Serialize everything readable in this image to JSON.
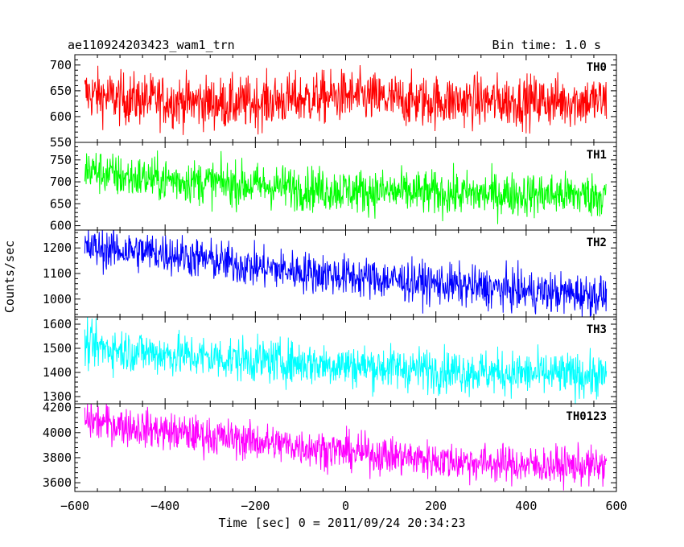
{
  "header": {
    "title": "ae110924203423_wam1_trn",
    "bin_time": "Bin time: 1.0 s"
  },
  "chart_data": {
    "type": "line",
    "title": "ae110924203423_wam1_trn",
    "subtitle": "Bin time: 1.0 s",
    "xlabel": "Time [sec] 0 = 2011/09/24 20:34:23",
    "ylabel": "Counts/sec",
    "xlim": [
      -600,
      600
    ],
    "xticks": [
      -600,
      -400,
      -200,
      0,
      200,
      400,
      600
    ],
    "x_range": [
      -578,
      578
    ],
    "bin_time": 1.0,
    "panels": [
      {
        "name": "TH0",
        "color": "#ff0000",
        "ylim": [
          550,
          720
        ],
        "yticks": [
          550,
          600,
          650,
          700
        ],
        "trend": [
          [
            -578,
            645
          ],
          [
            -500,
            635
          ],
          [
            -250,
            625
          ],
          [
            0,
            640
          ],
          [
            150,
            630
          ],
          [
            300,
            630
          ],
          [
            578,
            630
          ]
        ],
        "noise_sd": 25
      },
      {
        "name": "TH1",
        "color": "#00ff00",
        "ylim": [
          590,
          790
        ],
        "yticks": [
          600,
          650,
          700,
          750
        ],
        "trend": [
          [
            -578,
            730
          ],
          [
            -500,
            712
          ],
          [
            -250,
            695
          ],
          [
            0,
            680
          ],
          [
            250,
            672
          ],
          [
            578,
            670
          ]
        ],
        "noise_sd": 25
      },
      {
        "name": "TH2",
        "color": "#0000ff",
        "ylim": [
          930,
          1270
        ],
        "yticks": [
          1000,
          1100,
          1200
        ],
        "trend": [
          [
            -578,
            1200
          ],
          [
            -400,
            1180
          ],
          [
            -200,
            1125
          ],
          [
            0,
            1090
          ],
          [
            200,
            1060
          ],
          [
            400,
            1030
          ],
          [
            578,
            1015
          ]
        ],
        "noise_sd": 40
      },
      {
        "name": "TH3",
        "color": "#00ffff",
        "ylim": [
          1270,
          1630
        ],
        "yticks": [
          1300,
          1400,
          1500,
          1600
        ],
        "trend": [
          [
            -578,
            1510
          ],
          [
            -400,
            1475
          ],
          [
            -200,
            1450
          ],
          [
            0,
            1430
          ],
          [
            200,
            1410
          ],
          [
            400,
            1395
          ],
          [
            578,
            1385
          ]
        ],
        "noise_sd": 45
      },
      {
        "name": "TH0123",
        "color": "#ff00ff",
        "ylim": [
          3530,
          4230
        ],
        "yticks": [
          3600,
          3800,
          4000,
          4200
        ],
        "trend": [
          [
            -578,
            4100
          ],
          [
            -400,
            4010
          ],
          [
            -200,
            3930
          ],
          [
            0,
            3850
          ],
          [
            200,
            3780
          ],
          [
            400,
            3740
          ],
          [
            578,
            3730
          ]
        ],
        "noise_sd": 75
      }
    ]
  }
}
